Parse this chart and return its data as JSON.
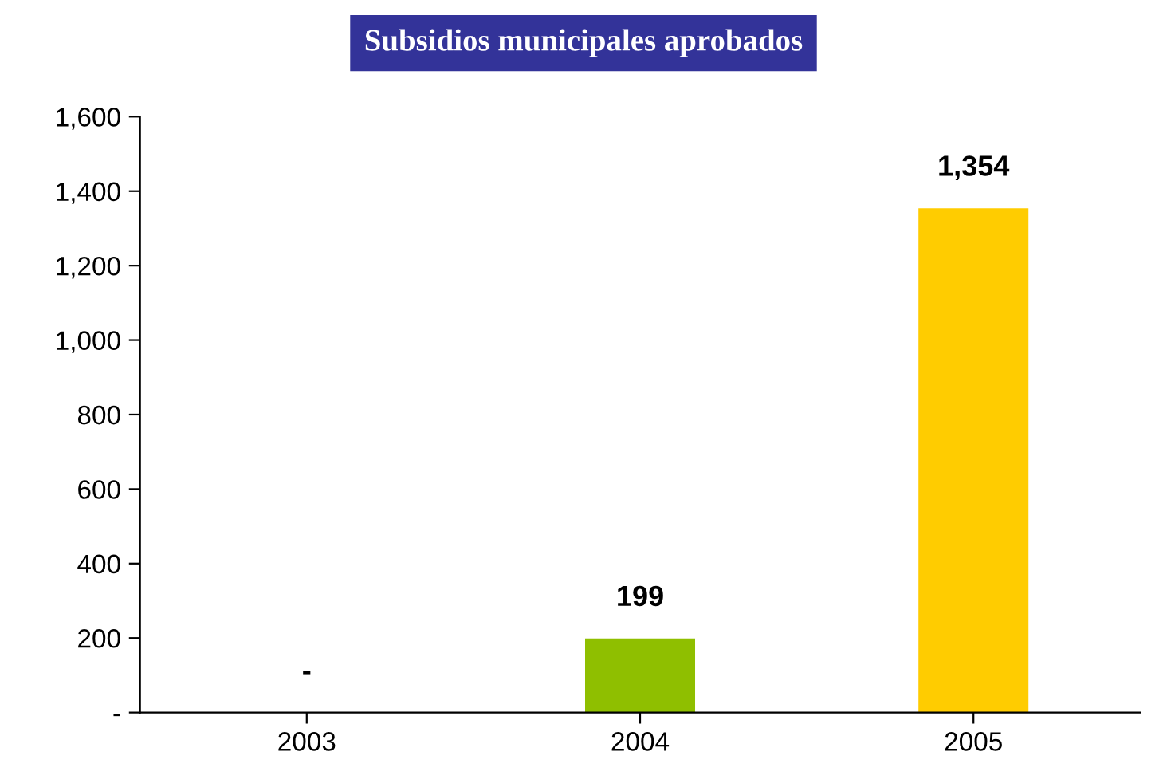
{
  "chart_data": {
    "type": "bar",
    "title": "Subsidios municipales aprobados",
    "categories": [
      "2003",
      "2004",
      "2005"
    ],
    "values": [
      0,
      199,
      1354
    ],
    "colors": [
      "#8fbf00",
      "#8fbf00",
      "#ffcc00"
    ],
    "value_labels": [
      "-",
      "199",
      "1,354"
    ],
    "ylim": [
      0,
      1600
    ],
    "yticks": [
      {
        "value": 0,
        "label": "-"
      },
      {
        "value": 200,
        "label": "200"
      },
      {
        "value": 400,
        "label": "400"
      },
      {
        "value": 600,
        "label": "600"
      },
      {
        "value": 800,
        "label": "800"
      },
      {
        "value": 1000,
        "label": "1,000"
      },
      {
        "value": 1200,
        "label": "1,200"
      },
      {
        "value": 1400,
        "label": "1,400"
      },
      {
        "value": 1600,
        "label": "1,600"
      }
    ],
    "grid": false,
    "legend": false
  }
}
